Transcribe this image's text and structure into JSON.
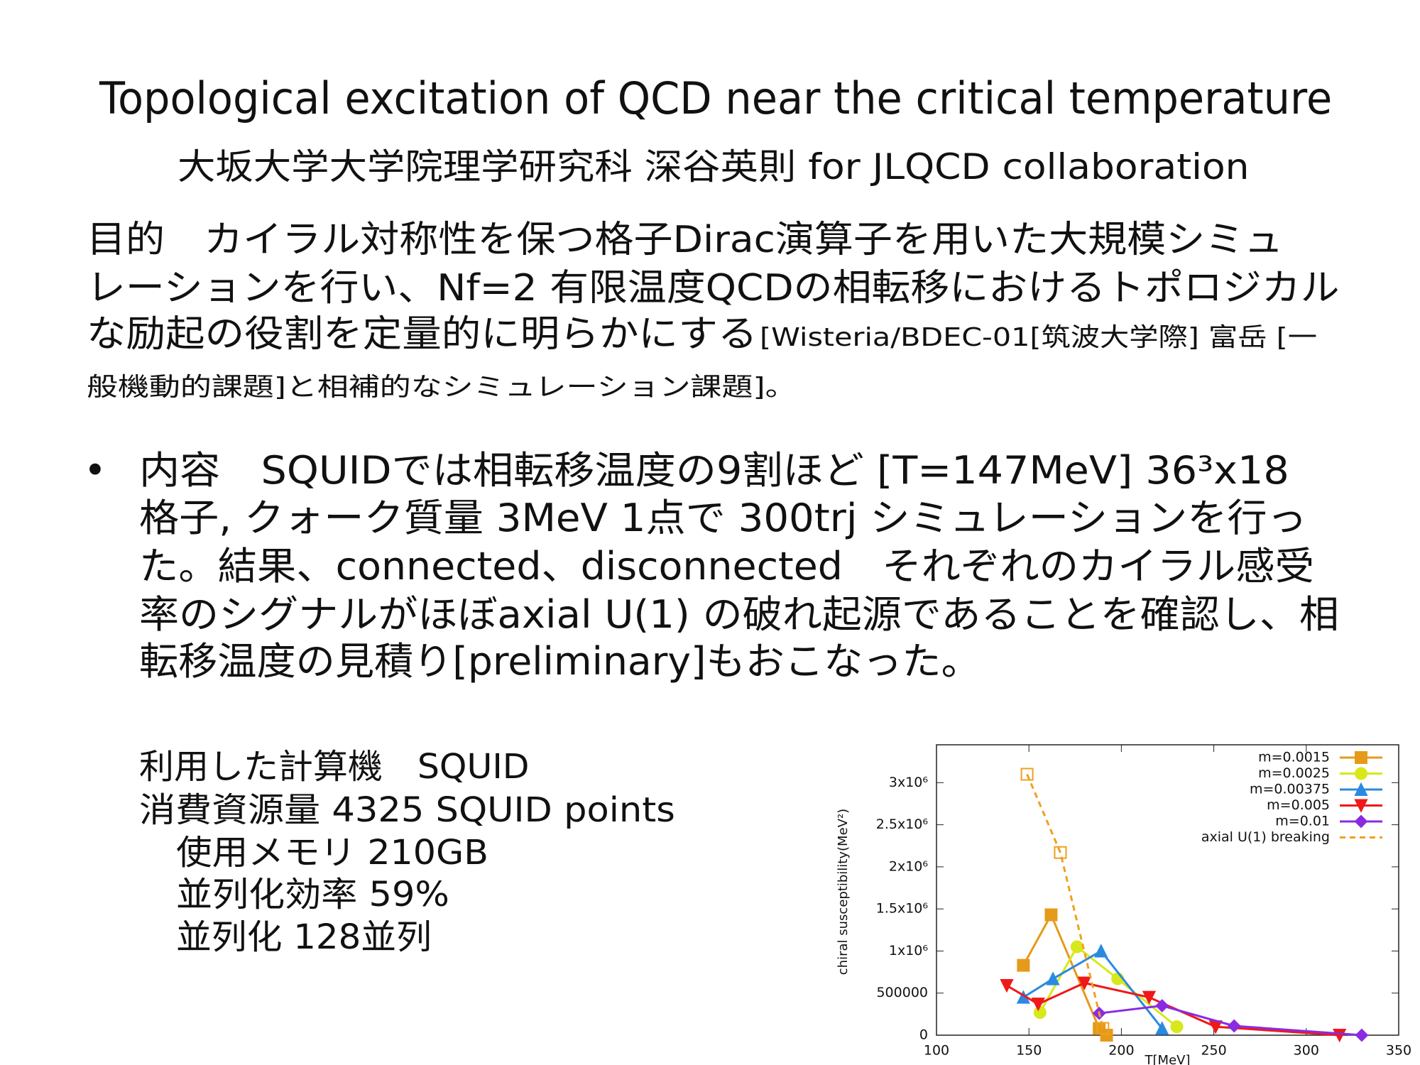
{
  "title": "Topological excitation of QCD near the critical temperature",
  "subtitle": "大坂大学大学院理学研究科 深谷英則 for JLQCD collaboration",
  "purpose": {
    "lines": [
      "目的　カイラル対称性を保つ格子Dirac演算子を用いた大規模シミュ",
      "レーションを行い、Nf=2 有限温度QCDの相転移におけるトポロジカル",
      "な励起の役割を定量的に明らかにする"
    ],
    "note_lines": [
      "[Wisteria/BDEC-01[筑波大学際] 富岳 [一",
      "般機動的課題]と相補的なシミュレーション課題]。"
    ]
  },
  "content": {
    "lines": [
      "内容　SQUIDでは相転移温度の9割ほど [T=147MeV]  36³x18",
      "格子, クォーク質量 3MeV 1点で 300trj シミュレーションを行っ",
      "た。結果、connected、disconnected　それぞれのカイラル感受",
      "率のシグナルがほぼaxial U(1) の破れ起源であることを確認し、相",
      "転移温度の見積り[preliminary]もおこなった。"
    ]
  },
  "resources": {
    "lines": [
      "利用した計算機　SQUID",
      "消費資源量 4325 SQUID points",
      "使用メモリ 210GB",
      "並列化効率 59%",
      "並列化 128並列"
    ]
  },
  "chart_data": {
    "type": "line",
    "ylabel": "chiral susceptibility(MeV²)",
    "xlabel": "T[MeV]",
    "xlim": [
      100,
      350
    ],
    "xticks": [
      100,
      150,
      200,
      250,
      300,
      350
    ],
    "ylim": [
      0,
      3450000
    ],
    "yticks": [
      0,
      500000,
      {
        "value": 1000000,
        "label": "1x10⁶"
      },
      {
        "value": 1500000,
        "label": "1.5x10⁶"
      },
      {
        "value": 2000000,
        "label": "2x10⁶"
      },
      {
        "value": 2500000,
        "label": "2.5x10⁶"
      },
      {
        "value": 3000000,
        "label": "3x10⁶"
      }
    ],
    "legend": "top-right",
    "series": [
      {
        "name": "m=0.0015",
        "color": "#e69a1a",
        "marker": "square",
        "x": [
          147,
          162,
          188,
          192
        ],
        "values": [
          830000,
          1430000,
          80000,
          0
        ]
      },
      {
        "name": "m=0.0025",
        "color": "#d8e81a",
        "marker": "circle",
        "x": [
          156,
          176,
          198,
          230
        ],
        "values": [
          270000,
          1050000,
          670000,
          100000
        ]
      },
      {
        "name": "m=0.00375",
        "color": "#2a8ae0",
        "marker": "triangle",
        "x": [
          147,
          163,
          189,
          222
        ],
        "values": [
          450000,
          670000,
          1000000,
          80000
        ]
      },
      {
        "name": "m=0.005",
        "color": "#f01818",
        "marker": "triangle-down",
        "x": [
          138,
          155,
          180,
          215,
          251,
          318
        ],
        "values": [
          590000,
          370000,
          620000,
          450000,
          100000,
          0
        ]
      },
      {
        "name": "m=0.01",
        "color": "#8a2be2",
        "marker": "diamond",
        "x": [
          188,
          222,
          261,
          330
        ],
        "values": [
          260000,
          350000,
          110000,
          0
        ]
      },
      {
        "name": "axial U(1) breaking",
        "color": "#f0a020",
        "marker": "square-open",
        "dashed": true,
        "x": [
          149,
          167,
          190
        ],
        "values": [
          3100000,
          2170000,
          80000
        ]
      }
    ]
  }
}
